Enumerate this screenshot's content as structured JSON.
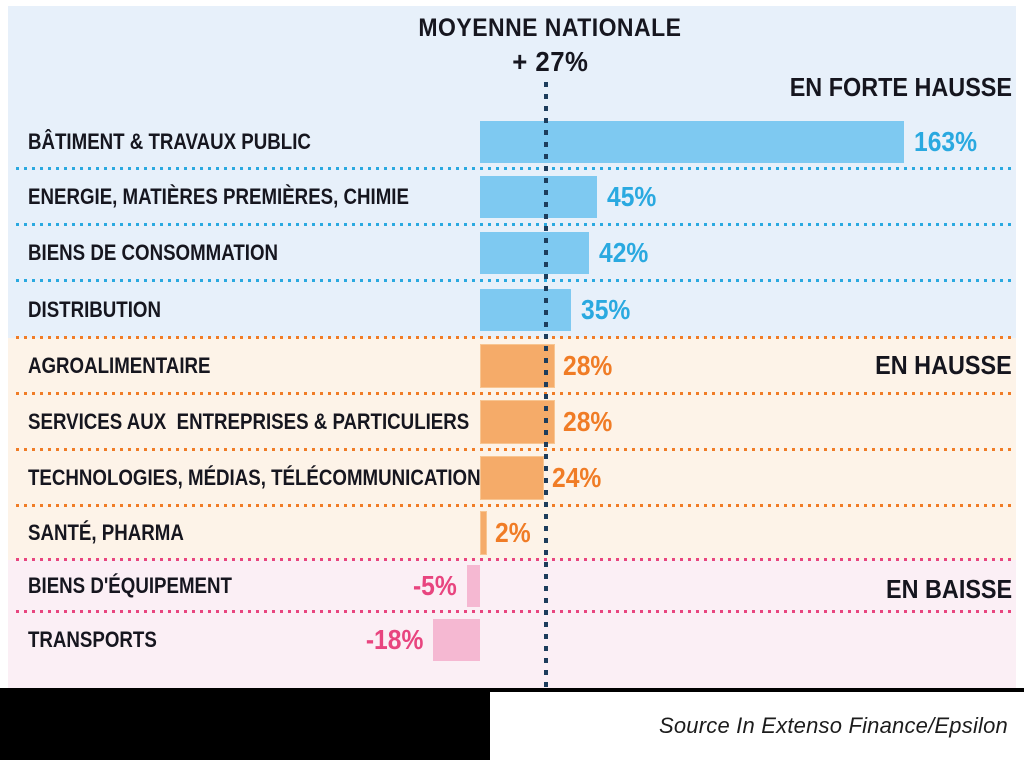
{
  "title": {
    "line1": "MOYENNE NATIONALE",
    "line2": "+ 27%"
  },
  "source": "Source In Extenso Finance/Epsilon",
  "colors": {
    "accent_blue": "#2aa9e0",
    "bar_blue": "#7ec9f1",
    "bg_blue": "#e7f0fa",
    "accent_orange": "#f07c26",
    "bar_orange": "#f5ab69",
    "bg_peach": "#fdf3e8",
    "accent_pink": "#e8457f",
    "bar_pink": "#f5b8d2",
    "bg_pink": "#fbeff5",
    "average_line_navy": "#1d3d5c",
    "label_text": "#16161f",
    "footer_black": "#000000"
  },
  "chart_data": {
    "type": "bar",
    "orientation": "horizontal",
    "unit": "%",
    "title": "MOYENNE NATIONALE + 27%",
    "national_average_pct": 27,
    "xlim": [
      -30,
      180
    ],
    "grid": false,
    "legend_position": "none",
    "sections": [
      {
        "label": "EN FORTE HAUSSE",
        "tone": "blue"
      },
      {
        "label": "EN HAUSSE",
        "tone": "orange"
      },
      {
        "label": "EN BAISSE",
        "tone": "pink"
      }
    ],
    "rows": [
      {
        "label": "BÂTIMENT & TRAVAUX PUBLIC",
        "value": 163,
        "display": "163%",
        "section": "EN FORTE HAUSSE"
      },
      {
        "label": "ENERGIE, MATIÈRES PREMIÈRES, CHIMIE",
        "value": 45,
        "display": "45%",
        "section": "EN FORTE HAUSSE"
      },
      {
        "label": "BIENS DE CONSOMMATION",
        "value": 42,
        "display": "42%",
        "section": "EN FORTE HAUSSE"
      },
      {
        "label": "DISTRIBUTION",
        "value": 35,
        "display": "35%",
        "section": "EN FORTE HAUSSE"
      },
      {
        "label": "AGROALIMENTAIRE",
        "value": 28,
        "display": "28%",
        "section": "EN HAUSSE"
      },
      {
        "label": "SERVICES AUX  ENTREPRISES & PARTICULIERS",
        "value": 28,
        "display": "28%",
        "section": "EN HAUSSE"
      },
      {
        "label": "TECHNOLOGIES, MÉDIAS, TÉLÉCOMMUNICATIONS",
        "value": 24,
        "display": "24%",
        "section": "EN HAUSSE"
      },
      {
        "label": "SANTÉ, PHARMA",
        "value": 2,
        "display": "2%",
        "section": "EN HAUSSE"
      },
      {
        "label": "BIENS D'ÉQUIPEMENT",
        "value": -5,
        "display": "-5%",
        "section": "EN BAISSE"
      },
      {
        "label": "TRANSPORTS",
        "value": -18,
        "display": "-18%",
        "section": "EN BAISSE"
      }
    ]
  }
}
